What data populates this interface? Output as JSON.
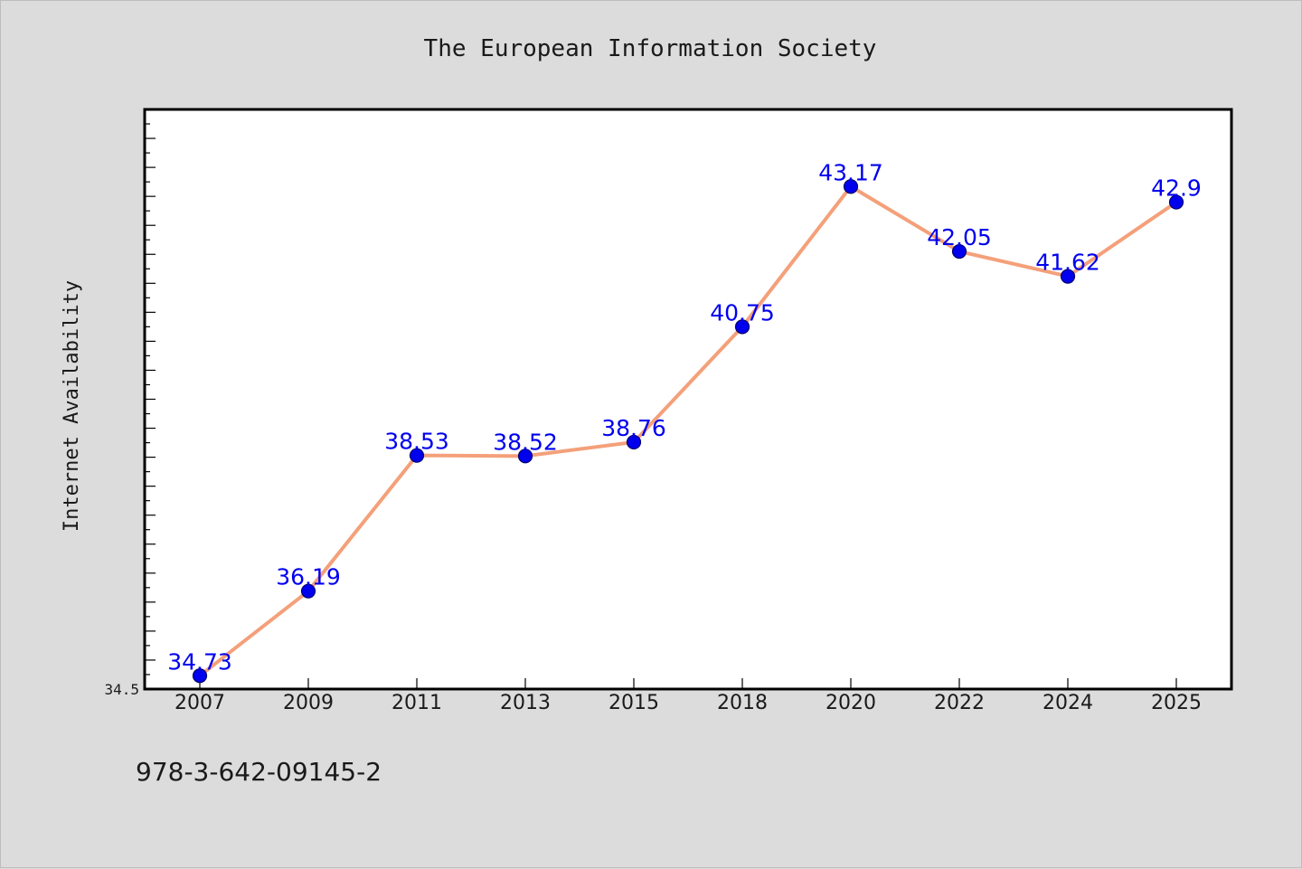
{
  "chart_data": {
    "type": "line",
    "title": "The European Information Society",
    "xlabel": "",
    "ylabel": "Internet Availability",
    "categories": [
      "2007",
      "2009",
      "2011",
      "2013",
      "2015",
      "2018",
      "2020",
      "2022",
      "2024",
      "2025"
    ],
    "series": [
      {
        "values": [
          34.73,
          36.19,
          38.53,
          38.52,
          38.76,
          40.75,
          43.17,
          42.05,
          41.62,
          42.9
        ],
        "labels": [
          "34.73",
          "36.19",
          "38.53",
          "38.52",
          "38.76",
          "40.75",
          "43.17",
          "42.05",
          "41.62",
          "42.9"
        ],
        "line_color": "#f4a07a",
        "marker_color": "#0000ee"
      }
    ],
    "y_tick_labels": [
      "34.5"
    ],
    "ylim": [
      34.5,
      44.5
    ],
    "grid": false,
    "legend": "none"
  },
  "footer": {
    "isbn": "978-3-642-09145-2"
  }
}
